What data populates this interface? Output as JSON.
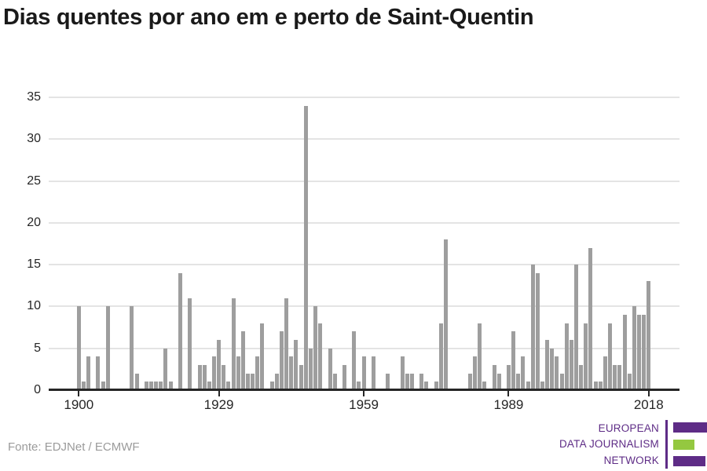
{
  "title": "Dias quentes por ano em e perto de Saint-Quentin",
  "source": "Fonte: EDJNet / ECMWF",
  "logo": {
    "lines": [
      "EUROPEAN",
      "DATA JOURNALISM",
      "NETWORK"
    ],
    "purple": "#5e2c86",
    "green": "#94c840"
  },
  "chart_data": {
    "type": "bar",
    "title": "Dias quentes por ano em e perto de Saint-Quentin",
    "xlabel": "",
    "ylabel": "",
    "x_range": [
      1900,
      2018
    ],
    "ylim": [
      0,
      35
    ],
    "grid": true,
    "bar_color": "#9e9e9e",
    "xticks": [
      1900,
      1929,
      1959,
      1989,
      2018
    ],
    "yticks": [
      0,
      5,
      10,
      15,
      20,
      25,
      30,
      35
    ],
    "years": [
      1900,
      1901,
      1902,
      1903,
      1904,
      1905,
      1906,
      1907,
      1908,
      1909,
      1910,
      1911,
      1912,
      1913,
      1914,
      1915,
      1916,
      1917,
      1918,
      1919,
      1920,
      1921,
      1922,
      1923,
      1924,
      1925,
      1926,
      1927,
      1928,
      1929,
      1930,
      1931,
      1932,
      1933,
      1934,
      1935,
      1936,
      1937,
      1938,
      1939,
      1940,
      1941,
      1942,
      1943,
      1944,
      1945,
      1946,
      1947,
      1948,
      1949,
      1950,
      1951,
      1952,
      1953,
      1954,
      1955,
      1956,
      1957,
      1958,
      1959,
      1960,
      1961,
      1962,
      1963,
      1964,
      1965,
      1966,
      1967,
      1968,
      1969,
      1970,
      1971,
      1972,
      1973,
      1974,
      1975,
      1976,
      1977,
      1978,
      1979,
      1980,
      1981,
      1982,
      1983,
      1984,
      1985,
      1986,
      1987,
      1988,
      1989,
      1990,
      1991,
      1992,
      1993,
      1994,
      1995,
      1996,
      1997,
      1998,
      1999,
      2000,
      2001,
      2002,
      2003,
      2004,
      2005,
      2006,
      2007,
      2008,
      2009,
      2010,
      2011,
      2012,
      2013,
      2014,
      2015,
      2016,
      2017,
      2018
    ],
    "values": [
      10,
      1,
      4,
      0,
      4,
      1,
      10,
      0,
      0,
      0,
      0,
      10,
      2,
      0,
      1,
      1,
      1,
      1,
      5,
      1,
      0,
      14,
      0,
      11,
      0,
      3,
      3,
      1,
      4,
      6,
      3,
      1,
      11,
      4,
      7,
      2,
      2,
      4,
      8,
      0,
      1,
      2,
      7,
      11,
      4,
      6,
      3,
      34,
      5,
      10,
      8,
      0,
      5,
      2,
      0,
      3,
      0,
      7,
      1,
      4,
      0,
      4,
      0,
      0,
      2,
      0,
      0,
      4,
      2,
      2,
      0,
      2,
      1,
      0,
      1,
      8,
      18,
      0,
      0,
      0,
      0,
      2,
      4,
      8,
      1,
      0,
      3,
      2,
      0,
      3,
      7,
      2,
      4,
      1,
      15,
      14,
      1,
      6,
      5,
      4,
      2,
      8,
      6,
      15,
      3,
      8,
      17,
      1,
      1,
      4,
      8,
      3,
      3,
      9,
      2,
      10,
      9,
      9,
      13
    ]
  }
}
